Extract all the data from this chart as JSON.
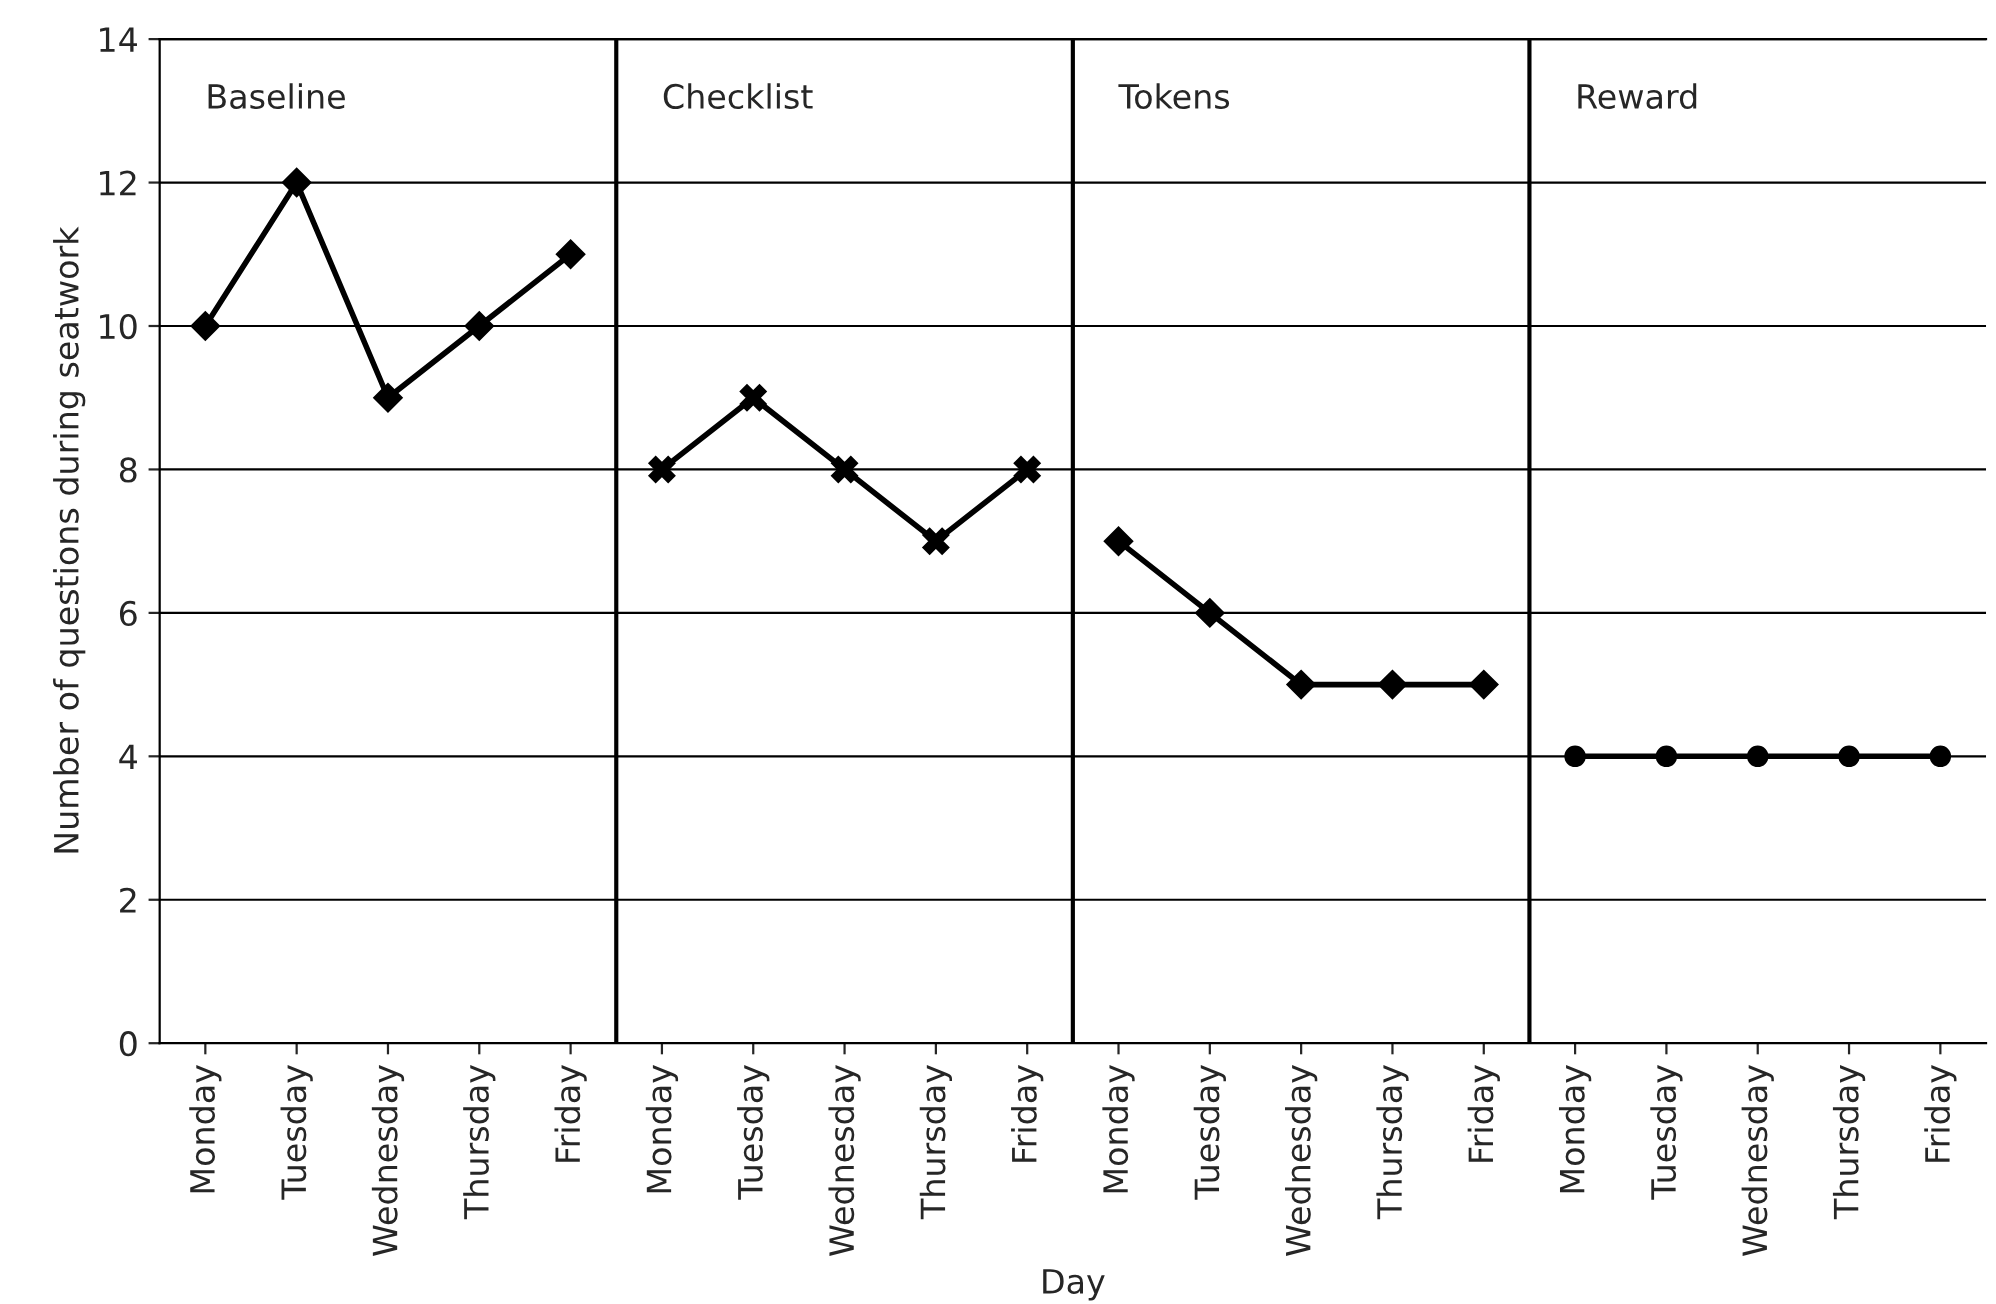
{
  "chart_data": {
    "type": "line",
    "categories": [
      "Monday",
      "Tuesday",
      "Wednesday",
      "Thursday",
      "Friday",
      "Monday",
      "Tuesday",
      "Wednesday",
      "Thursday",
      "Friday",
      "Monday",
      "Tuesday",
      "Wednesday",
      "Thursday",
      "Friday",
      "Monday",
      "Tuesday",
      "Wednesday",
      "Thursday",
      "Friday"
    ],
    "series": [
      {
        "color": "#000000",
        "marker": "diamond",
        "values": [
          10,
          12,
          9,
          10,
          11,
          null,
          null,
          null,
          null,
          null,
          null,
          null,
          null,
          null,
          null,
          null,
          null,
          null,
          null,
          null
        ]
      },
      {
        "color": "#000000",
        "marker": "cross",
        "values": [
          null,
          null,
          null,
          null,
          null,
          8,
          9,
          8,
          7,
          8,
          null,
          null,
          null,
          null,
          null,
          null,
          null,
          null,
          null,
          null
        ]
      },
      {
        "color": "#000000",
        "marker": "diamond",
        "values": [
          null,
          null,
          null,
          null,
          null,
          null,
          null,
          null,
          null,
          null,
          7,
          6,
          5,
          5,
          5,
          null,
          null,
          null,
          null,
          null
        ]
      },
      {
        "color": "#000000",
        "marker": "circle",
        "values": [
          null,
          null,
          null,
          null,
          null,
          null,
          null,
          null,
          null,
          null,
          null,
          null,
          null,
          null,
          null,
          4,
          4,
          4,
          4,
          4
        ]
      }
    ],
    "xlabel": "Day",
    "ylabel": "Number of questions during seatwork",
    "ylim": [
      0,
      14
    ],
    "yticks": [
      0,
      2,
      4,
      6,
      8,
      10,
      12,
      14
    ],
    "grid": "y",
    "legend": false,
    "line_style": "solid",
    "annotations": [
      "Baseline",
      "Checklist",
      "Tokens",
      "Reward"
    ]
  }
}
